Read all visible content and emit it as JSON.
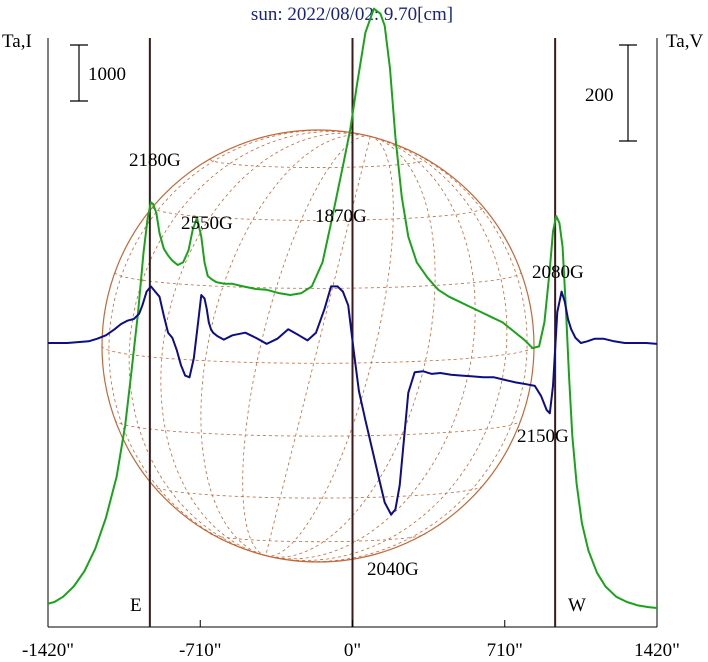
{
  "chart_data": {
    "type": "line",
    "title": "sun: 2022/08/02: 9.70[cm]",
    "left_axis_label": "Ta,I",
    "right_axis_label": "Ta,V",
    "x_ticks": [
      {
        "value": -1420,
        "label": "-1420\""
      },
      {
        "value": -710,
        "label": "-710\""
      },
      {
        "value": 0,
        "label": "0\""
      },
      {
        "value": 710,
        "label": "710\""
      },
      {
        "value": 1420,
        "label": "1420\""
      }
    ],
    "x_range": [
      -1420,
      1420
    ],
    "limb_positions": [
      -945,
      945
    ],
    "limb_labels": {
      "east": "E",
      "west": "W"
    },
    "scale_bars": {
      "intensity": "1000",
      "polarization": "200"
    },
    "series": [
      {
        "name": "",
        "color": "#1aa31a",
        "x": [
          -1420,
          -1390,
          -1350,
          -1300,
          -1250,
          -1200,
          -1150,
          -1100,
          -1060,
          -1030,
          -1000,
          -975,
          -955,
          -940,
          -930,
          -915,
          -900,
          -880,
          -860,
          -840,
          -815,
          -790,
          -765,
          -745,
          -725,
          -705,
          -690,
          -675,
          -655,
          -635,
          -615,
          -595,
          -560,
          -510,
          -450,
          -400,
          -340,
          -290,
          -240,
          -190,
          -140,
          -100,
          -70,
          -40,
          -10,
          20,
          60,
          100,
          130,
          150,
          175,
          200,
          230,
          260,
          300,
          350,
          400,
          450,
          500,
          550,
          600,
          650,
          700,
          750,
          800,
          840,
          870,
          895,
          920,
          935,
          950,
          965,
          980,
          995,
          1010,
          1025,
          1045,
          1070,
          1100,
          1140,
          1180,
          1230,
          1280,
          1330,
          1380,
          1420
        ],
        "y": [
          -1520,
          -1510,
          -1480,
          -1420,
          -1330,
          -1200,
          -1020,
          -780,
          -480,
          -160,
          180,
          520,
          730,
          820,
          810,
          760,
          640,
          550,
          510,
          480,
          455,
          470,
          540,
          660,
          730,
          620,
          470,
          390,
          370,
          355,
          350,
          345,
          345,
          330,
          315,
          310,
          290,
          280,
          290,
          330,
          470,
          700,
          880,
          1060,
          1250,
          1500,
          1810,
          1950,
          1920,
          1850,
          1600,
          1200,
          850,
          620,
          470,
          380,
          310,
          270,
          240,
          210,
          180,
          150,
          120,
          70,
          20,
          -30,
          -20,
          120,
          430,
          650,
          740,
          700,
          560,
          200,
          -200,
          -540,
          -820,
          -1050,
          -1210,
          -1340,
          -1420,
          -1480,
          -1510,
          -1530,
          -1540,
          -1545
        ]
      },
      {
        "name": "",
        "color": "#0d0d8a",
        "x": [
          -1420,
          -1380,
          -1330,
          -1280,
          -1230,
          -1190,
          -1150,
          -1110,
          -1080,
          -1050,
          -1020,
          -995,
          -980,
          -960,
          -940,
          -920,
          -900,
          -880,
          -860,
          -840,
          -820,
          -800,
          -780,
          -760,
          -740,
          -720,
          -705,
          -690,
          -680,
          -670,
          -660,
          -650,
          -630,
          -600,
          -560,
          -500,
          -450,
          -400,
          -350,
          -300,
          -250,
          -210,
          -170,
          -130,
          -100,
          -70,
          -45,
          -20,
          5,
          30,
          60,
          90,
          120,
          150,
          180,
          200,
          220,
          240,
          260,
          290,
          330,
          370,
          410,
          460,
          510,
          560,
          610,
          660,
          710,
          760,
          810,
          850,
          880,
          905,
          920,
          935,
          955,
          975,
          990,
          1005,
          1020,
          1040,
          1065,
          1095,
          1130,
          1170,
          1220,
          1270,
          1320,
          1370,
          1420
        ],
        "y": [
          0,
          0,
          0,
          5,
          10,
          25,
          45,
          80,
          110,
          130,
          140,
          170,
          220,
          300,
          330,
          300,
          270,
          160,
          60,
          30,
          -40,
          -130,
          -190,
          -200,
          -90,
          120,
          280,
          260,
          200,
          120,
          80,
          60,
          40,
          20,
          45,
          60,
          30,
          -5,
          25,
          80,
          45,
          15,
          60,
          200,
          330,
          330,
          300,
          220,
          -40,
          -280,
          -450,
          -610,
          -770,
          -930,
          -1000,
          -970,
          -830,
          -560,
          -290,
          -170,
          -165,
          -180,
          -175,
          -185,
          -190,
          -195,
          -200,
          -200,
          -215,
          -230,
          -240,
          -250,
          -310,
          -390,
          -410,
          -250,
          180,
          300,
          240,
          140,
          80,
          30,
          0,
          10,
          25,
          25,
          10,
          0,
          0,
          0,
          -5
        ]
      }
    ],
    "annotations": [
      "2180G",
      "2550G",
      "1870G",
      "2080G",
      "2150G",
      "2040G"
    ]
  }
}
